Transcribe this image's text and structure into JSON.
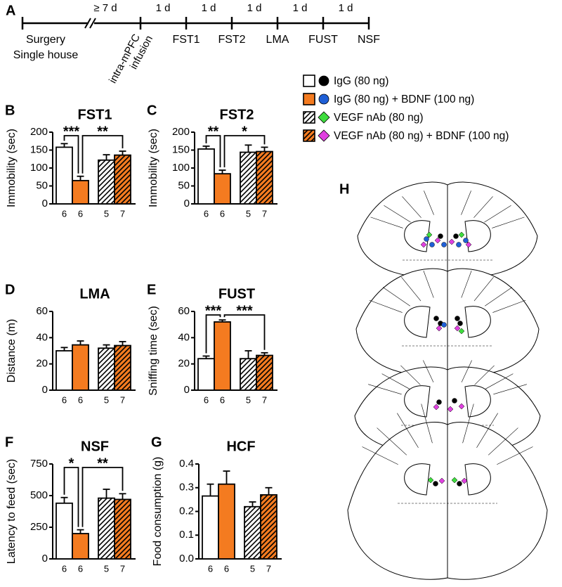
{
  "timeline": {
    "panel": "A",
    "durations": [
      "≥ 7 d",
      "1 d",
      "1 d",
      "1 d",
      "1 d",
      "1 d"
    ],
    "start": [
      "Surgery",
      "Single house"
    ],
    "infusion": [
      "intra-mPFC",
      "infusion"
    ],
    "events": [
      "FST1",
      "FST2",
      "LMA",
      "FUST",
      "NSF"
    ]
  },
  "legend": {
    "entries": [
      {
        "label": "IgG  (80 ng)",
        "fill": "#ffffff",
        "hatch": false,
        "marker": "circle",
        "marker_color": "#000000"
      },
      {
        "label": "IgG (80 ng) + BDNF (100 ng)",
        "fill": "#f47b20",
        "hatch": false,
        "marker": "circle",
        "marker_color": "#1f5fd6"
      },
      {
        "label": "VEGF nAb (80 ng)",
        "fill": "#ffffff",
        "hatch": true,
        "marker": "diamond",
        "marker_color": "#3ddc3d"
      },
      {
        "label": "VEGF nAb (80 ng) + BDNF (100 ng)",
        "fill": "#f47b20",
        "hatch": true,
        "marker": "diamond",
        "marker_color": "#e040e0"
      }
    ]
  },
  "brain": {
    "panel": "H"
  },
  "chart_data": [
    {
      "type": "bar",
      "panel": "B",
      "title": "FST1",
      "y_label": "Immobility (sec)",
      "ylim": [
        0,
        200
      ],
      "yticks": [
        0,
        50,
        100,
        150,
        200
      ],
      "values": [
        158,
        65,
        122,
        136
      ],
      "errors": [
        10,
        12,
        15,
        11
      ],
      "n": [
        6,
        6,
        5,
        7
      ],
      "significance": [
        {
          "between": [
            0,
            1
          ],
          "label": "***"
        },
        {
          "between": [
            1,
            3
          ],
          "label": "**"
        }
      ]
    },
    {
      "type": "bar",
      "panel": "C",
      "title": "FST2",
      "y_label": "Immobility (sec)",
      "ylim": [
        0,
        200
      ],
      "yticks": [
        0,
        50,
        100,
        150,
        200
      ],
      "values": [
        153,
        84,
        144,
        146
      ],
      "errors": [
        8,
        10,
        20,
        12
      ],
      "n": [
        6,
        6,
        5,
        7
      ],
      "significance": [
        {
          "between": [
            0,
            1
          ],
          "label": "**"
        },
        {
          "between": [
            1,
            3
          ],
          "label": "*"
        }
      ]
    },
    {
      "type": "bar",
      "panel": "D",
      "title": "LMA",
      "y_label": "Distance (m)",
      "ylim": [
        0,
        60
      ],
      "yticks": [
        0,
        20,
        40,
        60
      ],
      "values": [
        30,
        34.5,
        32,
        34
      ],
      "errors": [
        2.5,
        3,
        2.5,
        3
      ],
      "n": [
        6,
        6,
        5,
        7
      ],
      "significance": []
    },
    {
      "type": "bar",
      "panel": "E",
      "title": "FUST",
      "y_label": "Sniffing time (sec)",
      "ylim": [
        0,
        60
      ],
      "yticks": [
        0,
        20,
        40,
        60
      ],
      "values": [
        24,
        52,
        24,
        26.5
      ],
      "errors": [
        2,
        1.5,
        6,
        2
      ],
      "n": [
        6,
        6,
        5,
        7
      ],
      "significance": [
        {
          "between": [
            0,
            1
          ],
          "label": "***"
        },
        {
          "between": [
            1,
            3
          ],
          "label": "***"
        }
      ]
    },
    {
      "type": "bar",
      "panel": "F",
      "title": "NSF",
      "y_label": "Latency to feed (sec)",
      "ylim": [
        0,
        750
      ],
      "yticks": [
        0,
        250,
        500,
        750
      ],
      "values": [
        440,
        200,
        480,
        470
      ],
      "errors": [
        45,
        30,
        70,
        45
      ],
      "n": [
        6,
        6,
        5,
        7
      ],
      "significance": [
        {
          "between": [
            0,
            1
          ],
          "label": "*"
        },
        {
          "between": [
            1,
            3
          ],
          "label": "**"
        }
      ]
    },
    {
      "type": "bar",
      "panel": "G",
      "title": "HCF",
      "y_label": "Food consumption (g)",
      "ylim": [
        0,
        0.4
      ],
      "yticks": [
        {
          "value": 0,
          "label": "0.0"
        },
        0.1,
        0.2,
        0.3,
        0.4
      ],
      "values": [
        0.265,
        0.315,
        0.22,
        0.27
      ],
      "errors": [
        0.05,
        0.055,
        0.02,
        0.03
      ],
      "n": [
        6,
        6,
        5,
        7
      ],
      "significance": []
    }
  ]
}
